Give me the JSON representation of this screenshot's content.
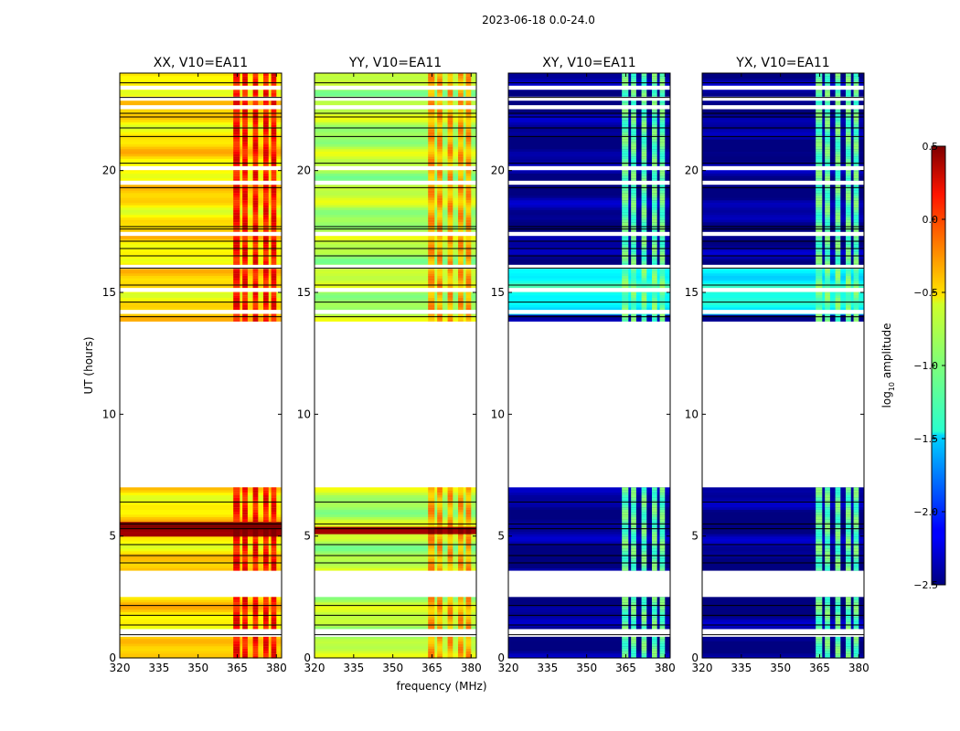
{
  "chart_data": {
    "type": "heatmap",
    "title": "2023-06-18 0.0-24.0",
    "xlabel": "frequency (MHz)",
    "ylabel": "UT (hours)",
    "xlim": [
      320,
      382
    ],
    "ylim": [
      0,
      24
    ],
    "xticks": [
      320,
      335,
      350,
      365,
      380
    ],
    "xtick_labels": [
      "320",
      "335",
      "350",
      "365",
      "380"
    ],
    "yticks": [
      0,
      5,
      10,
      15,
      20
    ],
    "ytick_labels": [
      "0",
      "5",
      "10",
      "15",
      "20"
    ],
    "colorbar": {
      "label_main": "log",
      "label_sub": "10",
      "label_rest": " amplitude",
      "min": -2.5,
      "max": 0.5,
      "ticks": [
        0.5,
        0.0,
        -0.5,
        -1.0,
        -1.5,
        -2.0,
        -2.5
      ],
      "tick_labels": [
        "0.5",
        "0.0",
        "−0.5",
        "−1.0",
        "−1.5",
        "−2.0",
        "−2.5"
      ]
    },
    "data_time_ranges": [
      [
        0.0,
        2.5
      ],
      [
        3.6,
        7.0
      ],
      [
        13.7,
        24.0
      ]
    ],
    "white_gaps": [
      0.95,
      1.1,
      13.72,
      14.2,
      15.1,
      16.05,
      17.4,
      19.5,
      20.1,
      22.6,
      22.95,
      23.4
    ],
    "black_flag_lines": [
      0.95,
      1.35,
      1.75,
      2.15,
      3.9,
      4.2,
      4.65,
      5.3,
      5.5,
      6.4,
      14.0,
      14.6,
      15.3,
      16.0,
      16.5,
      16.8,
      17.1,
      17.6,
      17.7,
      19.3,
      20.3,
      21.4,
      21.75,
      22.2,
      22.35,
      23.0,
      23.6
    ],
    "band_columns_mhz": [
      [
        363.5,
        366
      ],
      [
        367,
        369
      ],
      [
        371,
        373
      ],
      [
        375,
        377
      ],
      [
        378,
        380
      ]
    ],
    "panels": [
      {
        "title": "XX, V10=EA11",
        "base_value": -0.55,
        "band_value": 0.1,
        "hot_rows": [
          [
            5.0,
            5.6
          ]
        ],
        "hot_value": 0.45
      },
      {
        "title": "YY, V10=EA11",
        "base_value": -0.85,
        "band_value": -0.35,
        "hot_rows": [
          [
            5.1,
            5.4
          ]
        ],
        "hot_value": 0.35
      },
      {
        "title": "XY, V10=EA11",
        "base_value": -2.45,
        "band_value": -1.1,
        "hot_rows": [
          [
            14.1,
            16.1
          ]
        ],
        "hot_value": -1.35
      },
      {
        "title": "YX, V10=EA11",
        "base_value": -2.45,
        "band_value": -1.1,
        "hot_rows": [
          [
            14.1,
            16.1
          ]
        ],
        "hot_value": -1.35
      }
    ]
  }
}
